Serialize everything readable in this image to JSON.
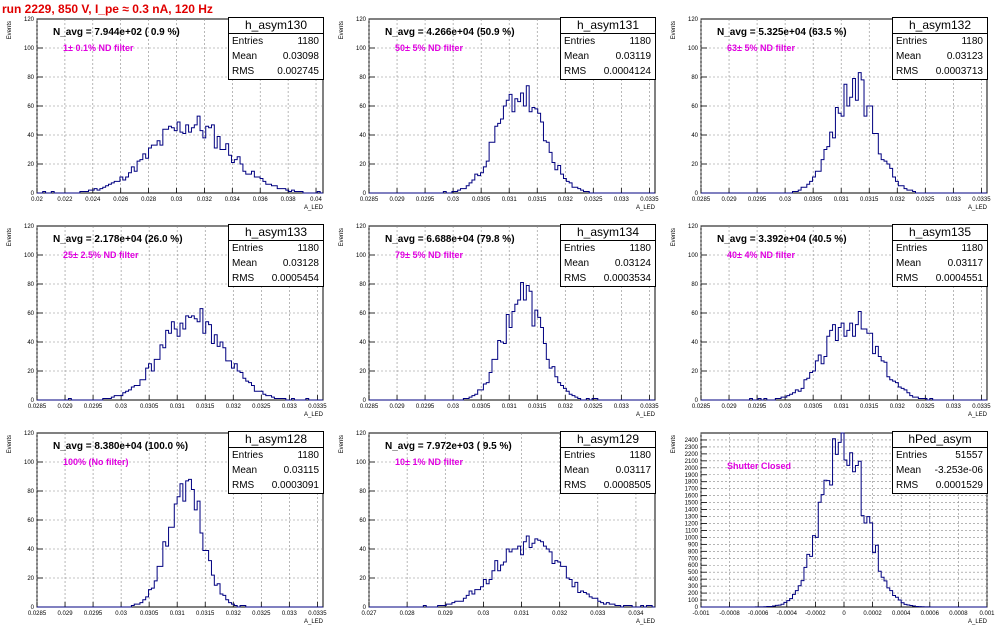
{
  "header": {
    "run_title": "run 2229,   850 V, I_pe ≈ 0.3 nA, 120 Hz"
  },
  "colors": {
    "histogram": "#000080",
    "title": "#e00000",
    "filter_label": "#e000e0",
    "grid": "#888888"
  },
  "chart_data": [
    {
      "type": "histogram",
      "name": "h_asym130",
      "navg_text": "N_avg = 7.944e+02 ( 0.9 %)",
      "filter_text": "1± 0.1% ND filter",
      "stats": [
        [
          "Entries",
          "1180"
        ],
        [
          "Mean",
          "0.03098"
        ],
        [
          "RMS",
          "0.002745"
        ]
      ],
      "xlabel": "A_LED",
      "ylabel": "Events",
      "xlim": [
        0.02,
        0.0405
      ],
      "ylim": [
        0,
        120
      ],
      "xticks": [
        "0.02",
        "0.022",
        "0.024",
        "0.026",
        "0.028",
        "0.03",
        "0.032",
        "0.034",
        "0.036",
        "0.038",
        "0.04"
      ],
      "yticks": [
        "0",
        "20",
        "40",
        "60",
        "80",
        "100",
        "120"
      ],
      "mean": 0.03098,
      "peak": 47,
      "sigma": 0.0028,
      "seed": 11
    },
    {
      "type": "histogram",
      "name": "h_asym131",
      "navg_text": "N_avg = 4.266e+04 (50.9 %)",
      "filter_text": "50± 5% ND filter",
      "stats": [
        [
          "Entries",
          "1180"
        ],
        [
          "Mean",
          "0.03119"
        ],
        [
          "RMS",
          "0.0004124"
        ]
      ],
      "xlabel": "A_LED",
      "ylabel": "Events",
      "xlim": [
        0.0285,
        0.0336
      ],
      "ylim": [
        0,
        120
      ],
      "xticks": [
        "0.0285",
        "0.029",
        "0.0295",
        "0.03",
        "0.0305",
        "0.031",
        "0.0315",
        "0.032",
        "0.0325",
        "0.033",
        "0.0335"
      ],
      "yticks": [
        "0",
        "20",
        "40",
        "60",
        "80",
        "100",
        "120"
      ],
      "mean": 0.03119,
      "peak": 68,
      "sigma": 0.00041,
      "seed": 23
    },
    {
      "type": "histogram",
      "name": "h_asym132",
      "navg_text": "N_avg = 5.325e+04 (63.5 %)",
      "filter_text": "63± 5% ND filter",
      "stats": [
        [
          "Entries",
          "1180"
        ],
        [
          "Mean",
          "0.03123"
        ],
        [
          "RMS",
          "0.0003713"
        ]
      ],
      "xlabel": "A_LED",
      "ylabel": "Events",
      "xlim": [
        0.0285,
        0.0336
      ],
      "ylim": [
        0,
        120
      ],
      "xticks": [
        "0.0285",
        "0.029",
        "0.0295",
        "0.03",
        "0.0305",
        "0.031",
        "0.0315",
        "0.032",
        "0.0325",
        "0.033",
        "0.0335"
      ],
      "yticks": [
        "0",
        "20",
        "40",
        "60",
        "80",
        "100",
        "120"
      ],
      "mean": 0.03123,
      "peak": 72,
      "sigma": 0.00037,
      "seed": 37
    },
    {
      "type": "histogram",
      "name": "h_asym133",
      "navg_text": "N_avg = 2.178e+04 (26.0 %)",
      "filter_text": "25± 2.5% ND filter",
      "stats": [
        [
          "Entries",
          "1180"
        ],
        [
          "Mean",
          "0.03128"
        ],
        [
          "RMS",
          "0.0005454"
        ]
      ],
      "xlabel": "A_LED",
      "ylabel": "Events",
      "xlim": [
        0.0285,
        0.0336
      ],
      "ylim": [
        0,
        120
      ],
      "xticks": [
        "0.0285",
        "0.029",
        "0.0295",
        "0.03",
        "0.0305",
        "0.031",
        "0.0315",
        "0.032",
        "0.0325",
        "0.033",
        "0.0335"
      ],
      "yticks": [
        "0",
        "20",
        "40",
        "60",
        "80",
        "100",
        "120"
      ],
      "mean": 0.03128,
      "peak": 57,
      "sigma": 0.00055,
      "seed": 41
    },
    {
      "type": "histogram",
      "name": "h_asym134",
      "navg_text": "N_avg = 6.688e+04 (79.8 %)",
      "filter_text": "79± 5% ND filter",
      "stats": [
        [
          "Entries",
          "1180"
        ],
        [
          "Mean",
          "0.03124"
        ],
        [
          "RMS",
          "0.0003534"
        ]
      ],
      "xlabel": "A_LED",
      "ylabel": "Events",
      "xlim": [
        0.0285,
        0.0336
      ],
      "ylim": [
        0,
        120
      ],
      "xticks": [
        "0.0285",
        "0.029",
        "0.0295",
        "0.03",
        "0.0305",
        "0.031",
        "0.0315",
        "0.032",
        "0.0325",
        "0.033",
        "0.0335"
      ],
      "yticks": [
        "0",
        "20",
        "40",
        "60",
        "80",
        "100",
        "120"
      ],
      "mean": 0.03124,
      "peak": 72,
      "sigma": 0.00035,
      "seed": 53
    },
    {
      "type": "histogram",
      "name": "h_asym135",
      "navg_text": "N_avg = 3.392e+04 (40.5 %)",
      "filter_text": "40± 4% ND filter",
      "stats": [
        [
          "Entries",
          "1180"
        ],
        [
          "Mean",
          "0.03117"
        ],
        [
          "RMS",
          "0.0004551"
        ]
      ],
      "xlabel": "A_LED",
      "ylabel": "Events",
      "xlim": [
        0.0285,
        0.0336
      ],
      "ylim": [
        0,
        120
      ],
      "xticks": [
        "0.0285",
        "0.029",
        "0.0295",
        "0.03",
        "0.0305",
        "0.031",
        "0.0315",
        "0.032",
        "0.0325",
        "0.033",
        "0.0335"
      ],
      "yticks": [
        "0",
        "20",
        "40",
        "60",
        "80",
        "100",
        "120"
      ],
      "mean": 0.03117,
      "peak": 55,
      "sigma": 0.00046,
      "seed": 67
    },
    {
      "type": "histogram",
      "name": "h_asym128",
      "navg_text": "N_avg = 8.380e+04 (100.0 %)",
      "filter_text": "100% (No filter)",
      "stats": [
        [
          "Entries",
          "1180"
        ],
        [
          "Mean",
          "0.03115"
        ],
        [
          "RMS",
          "0.0003091"
        ]
      ],
      "xlabel": "A_LED",
      "ylabel": "Events",
      "xlim": [
        0.0285,
        0.0336
      ],
      "ylim": [
        0,
        120
      ],
      "xticks": [
        "0.0285",
        "0.029",
        "0.0295",
        "0.03",
        "0.0305",
        "0.031",
        "0.0315",
        "0.032",
        "0.0325",
        "0.033",
        "0.0335"
      ],
      "yticks": [
        "0",
        "20",
        "40",
        "60",
        "80",
        "100",
        "120"
      ],
      "mean": 0.03115,
      "peak": 82,
      "sigma": 0.00031,
      "seed": 71
    },
    {
      "type": "histogram",
      "name": "h_asym129",
      "navg_text": "N_avg = 7.972e+03 ( 9.5 %)",
      "filter_text": "10± 1% ND filter",
      "stats": [
        [
          "Entries",
          "1180"
        ],
        [
          "Mean",
          "0.03117"
        ],
        [
          "RMS",
          "0.0008505"
        ]
      ],
      "xlabel": "A_LED",
      "ylabel": "Events",
      "xlim": [
        0.027,
        0.0345
      ],
      "ylim": [
        0,
        120
      ],
      "xticks": [
        "0.027",
        "0.028",
        "0.029",
        "0.03",
        "0.031",
        "0.032",
        "0.033",
        "0.034"
      ],
      "yticks": [
        "0",
        "20",
        "40",
        "60",
        "80",
        "100",
        "120"
      ],
      "mean": 0.03117,
      "peak": 44,
      "sigma": 0.00085,
      "seed": 83
    },
    {
      "type": "histogram",
      "name": "hPed_asym",
      "navg_text": "",
      "filter_text": "Shutter Closed",
      "stats": [
        [
          "Entries",
          "51557"
        ],
        [
          "Mean",
          "-3.253e-06"
        ],
        [
          "RMS",
          "0.0001529"
        ]
      ],
      "xlabel": "A_LED",
      "ylabel": "Events",
      "xlim": [
        -0.001,
        0.001
      ],
      "ylim": [
        0,
        2500
      ],
      "xticks": [
        "-0.001",
        "-0.0008",
        "-0.0006",
        "-0.0004",
        "-0.0002",
        "0",
        "0.0002",
        "0.0004",
        "0.0006",
        "0.0008",
        "0.001"
      ],
      "yticks": [
        "0",
        "100",
        "200",
        "300",
        "400",
        "500",
        "600",
        "700",
        "800",
        "900",
        "1000",
        "1100",
        "1200",
        "1300",
        "1400",
        "1500",
        "1600",
        "1700",
        "1800",
        "1900",
        "2000",
        "2100",
        "2200",
        "2300",
        "2400"
      ],
      "mean": -3.3e-06,
      "peak": 2380,
      "sigma": 0.000153,
      "seed": 97
    }
  ]
}
